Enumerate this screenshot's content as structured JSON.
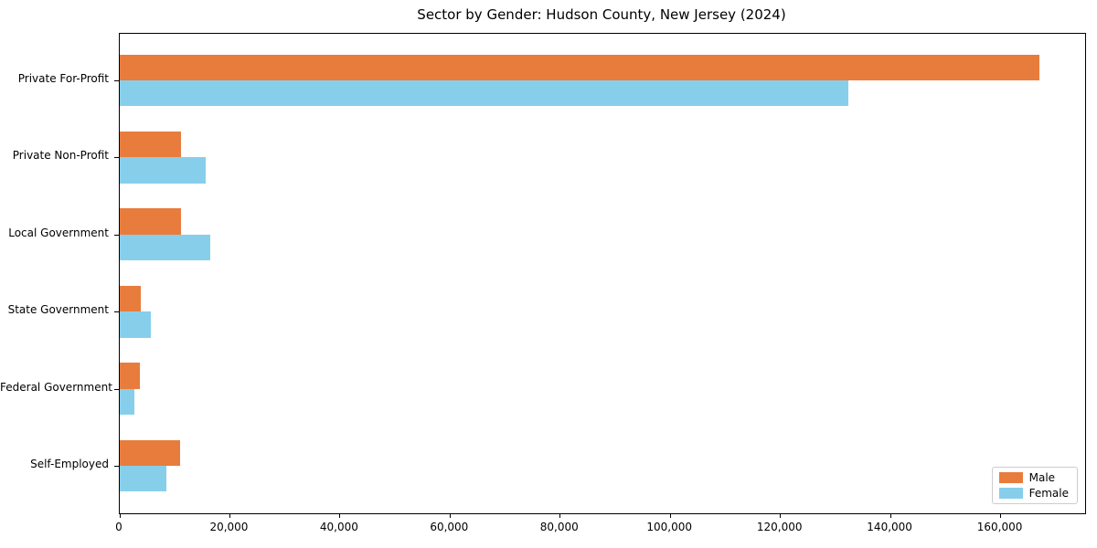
{
  "chart_data": {
    "type": "bar",
    "orientation": "horizontal",
    "title": "Sector by Gender: Hudson County, New Jersey (2024)",
    "categories": [
      "Private For-Profit",
      "Private Non-Profit",
      "Local Government",
      "State Government",
      "Federal Government",
      "Self-Employed"
    ],
    "series": [
      {
        "name": "Male",
        "color": "#e87c3c",
        "values": [
          167000,
          11100,
          11100,
          3800,
          3600,
          10900
        ]
      },
      {
        "name": "Female",
        "color": "#87ceeb",
        "values": [
          132300,
          15600,
          16500,
          5600,
          2700,
          8400
        ]
      }
    ],
    "xlabel": "",
    "ylabel": "",
    "xlim": [
      0,
      175350
    ],
    "x_ticks": [
      0,
      20000,
      40000,
      60000,
      80000,
      100000,
      120000,
      140000,
      160000
    ],
    "x_tick_labels": [
      "0",
      "20,000",
      "40,000",
      "60,000",
      "80,000",
      "100,000",
      "120,000",
      "140,000",
      "160,000"
    ],
    "grid": false,
    "legend_position": "lower right",
    "background_color": "#ffffff",
    "axis_color": "#000000"
  }
}
